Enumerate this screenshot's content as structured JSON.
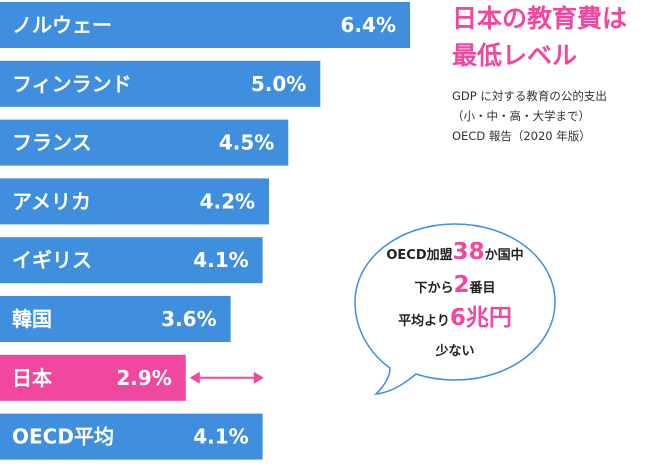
{
  "title": {
    "line1": "日本の教育費は",
    "line2": "最低レベル"
  },
  "note": {
    "line1": "GDP に対する教育の公的支出",
    "line2": "（小・中・高・大学まで）",
    "line3": "OECD 報告（2020 年版）"
  },
  "bubble": {
    "line1_pre": "OECD加盟",
    "line1_num": "38",
    "line1_post": "か国中",
    "line2_pre": "下から",
    "line2_num": "2",
    "line2_post": "番目",
    "line3_pre": "平均より",
    "line3_num": "6兆円",
    "line4": "少ない"
  },
  "colors": {
    "bar": "#3f8fde",
    "highlight": "#f0479f",
    "text_on_bar": "#ffffff",
    "bubble_border": "#3f8fde"
  },
  "chart_data": {
    "type": "bar",
    "orientation": "horizontal",
    "categories": [
      "ノルウェー",
      "フィンランド",
      "フランス",
      "アメリカ",
      "イギリス",
      "韓国",
      "日本",
      "OECD平均"
    ],
    "values": [
      6.4,
      5.0,
      4.5,
      4.2,
      4.1,
      3.6,
      2.9,
      4.1
    ],
    "value_labels": [
      "6.4%",
      "5.0%",
      "4.5%",
      "4.2%",
      "4.1%",
      "3.6%",
      "2.9%",
      "4.1%"
    ],
    "highlight_category": "日本",
    "unit": "%",
    "grid": false
  }
}
